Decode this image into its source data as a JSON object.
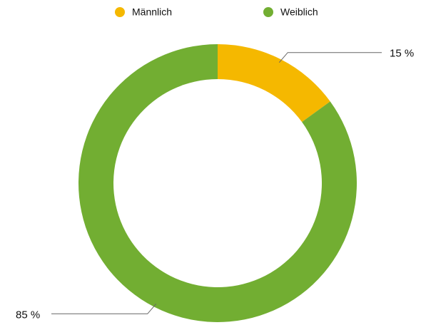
{
  "chart_data": {
    "type": "donut",
    "categories": [
      "Männlich",
      "Weiblich"
    ],
    "values": [
      15,
      85
    ],
    "value_labels": [
      "15 %",
      "85 %"
    ],
    "colors": [
      "#f5b800",
      "#72ae32"
    ]
  }
}
